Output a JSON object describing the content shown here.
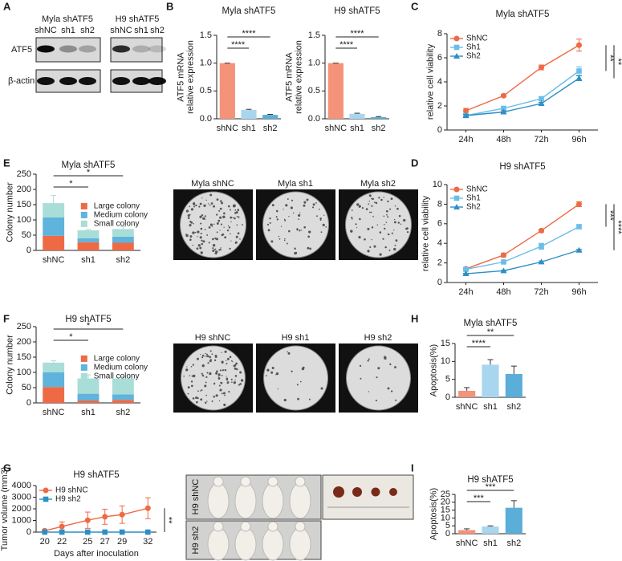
{
  "panel_labels": [
    "A",
    "B",
    "C",
    "D",
    "E",
    "F",
    "G",
    "H",
    "I"
  ],
  "blot": {
    "groups": [
      {
        "title": "Myla shATF5",
        "lanes": [
          "shNC",
          "sh1",
          "sh2"
        ]
      },
      {
        "title": "H9 shATF5",
        "lanes": [
          "shNC",
          "sh1",
          "sh2"
        ]
      }
    ],
    "rows": [
      "ATF5",
      "β-actin"
    ]
  },
  "images": {
    "plates": [
      [
        "Myla shNC",
        "Myla sh1",
        "Myla sh2"
      ],
      [
        "H9 shNC",
        "H9 sh1",
        "H9 sh2"
      ]
    ],
    "mice": [
      "H9 shNC",
      "H9 sh2"
    ]
  },
  "chart_data": [
    {
      "type": "bar",
      "title": "Myla shATF5",
      "y_label": [
        "ATF5 mRNA",
        "relative expression"
      ],
      "categories": [
        "shNC",
        "sh1",
        "sh2"
      ],
      "values": [
        1.0,
        0.16,
        0.07
      ],
      "errors": [
        0,
        0.01,
        0.01
      ],
      "colors": [
        "#f4937a",
        "#a9d6ef",
        "#5aaed8"
      ],
      "ylim": [
        0,
        1.5
      ],
      "yticks": [
        {
          "value": 0,
          "label": "0.0"
        },
        {
          "value": 0.5,
          "label": "0.5"
        },
        {
          "value": 1,
          "label": "1.0"
        },
        {
          "value": 1.5,
          "label": "1.5"
        }
      ],
      "significance": [
        "****",
        "****"
      ]
    },
    {
      "type": "bar",
      "title": "H9 shATF5",
      "y_label": [
        "ATF5 mRNA",
        "relative expression"
      ],
      "categories": [
        "shNC",
        "sh1",
        "sh2"
      ],
      "values": [
        1.0,
        0.09,
        0.03
      ],
      "errors": [
        0,
        0.01,
        0.01
      ],
      "colors": [
        "#f4937a",
        "#a9d6ef",
        "#5aaed8"
      ],
      "ylim": [
        0,
        1.5
      ],
      "yticks": [
        {
          "value": 0,
          "label": "0.0"
        },
        {
          "value": 0.5,
          "label": "0.5"
        },
        {
          "value": 1,
          "label": "1.0"
        },
        {
          "value": 1.5,
          "label": "1.5"
        }
      ],
      "significance": [
        "****",
        "****"
      ]
    },
    {
      "type": "line",
      "title": "Myla shATF5",
      "y_label": [
        "relative cell viability"
      ],
      "categories": [
        "24h",
        "48h",
        "72h",
        "96h"
      ],
      "series": [
        {
          "name": "ShNC",
          "color": "#ee6a45",
          "marker": "circle",
          "values": [
            1.6,
            2.85,
            5.2,
            7.05
          ],
          "errors": [
            0.2,
            0.1,
            0.2,
            0.5
          ]
        },
        {
          "name": "Sh1",
          "color": "#6bbde6",
          "marker": "square",
          "values": [
            1.2,
            1.8,
            2.6,
            4.9
          ],
          "errors": [
            0.1,
            0.15,
            0.15,
            0.35
          ]
        },
        {
          "name": "Sh2",
          "color": "#2e8fc4",
          "marker": "triangle",
          "values": [
            1.2,
            1.5,
            2.2,
            4.3
          ],
          "errors": [
            0.1,
            0.1,
            0.1,
            0.2
          ]
        }
      ],
      "ylim": [
        0,
        8
      ],
      "yticks": [
        0,
        2,
        4,
        6,
        8
      ],
      "legend": "upper left",
      "significance": [
        "**",
        "**"
      ]
    },
    {
      "type": "line",
      "title": "H9 shATF5",
      "y_label": [
        "relative cell viability"
      ],
      "categories": [
        "24h",
        "48h",
        "72h",
        "96h"
      ],
      "series": [
        {
          "name": "ShNC",
          "color": "#ee6a45",
          "marker": "circle",
          "values": [
            1.4,
            2.8,
            5.3,
            8.0
          ],
          "errors": [
            0.1,
            0.2,
            0.15,
            0.25
          ]
        },
        {
          "name": "Sh1",
          "color": "#6bbde6",
          "marker": "square",
          "values": [
            1.35,
            2.1,
            3.7,
            5.7
          ],
          "errors": [
            0.1,
            0.1,
            0.3,
            0.2
          ]
        },
        {
          "name": "Sh2",
          "color": "#2e8fc4",
          "marker": "triangle",
          "values": [
            0.9,
            1.2,
            2.1,
            3.3
          ],
          "errors": [
            0.05,
            0.05,
            0.1,
            0.1
          ]
        }
      ],
      "ylim": [
        0,
        10
      ],
      "yticks": [
        0,
        2,
        4,
        6,
        8,
        10
      ],
      "legend": "upper left",
      "significance": [
        "***",
        "****"
      ]
    },
    {
      "type": "stacked_bar",
      "title": "Myla shATF5",
      "y_label": [
        "Colony number"
      ],
      "categories": [
        "shNC",
        "sh1",
        "sh2"
      ],
      "series": [
        {
          "name": "Large colony",
          "color": "#ee6a45",
          "values": [
            48,
            27,
            25
          ],
          "errors": [
            20,
            5,
            8
          ]
        },
        {
          "name": "Medium colony",
          "color": "#5fb3dc",
          "values": [
            60,
            13,
            20
          ],
          "errors": [
            25,
            3,
            8
          ]
        },
        {
          "name": "Small colony",
          "color": "#a9ddd8",
          "values": [
            47,
            26,
            25
          ],
          "errors": [
            25,
            3,
            8
          ]
        }
      ],
      "ylim": [
        0,
        250
      ],
      "yticks": [
        0,
        50,
        100,
        150,
        200,
        250
      ],
      "legend": "center right",
      "significance": [
        "*",
        "*"
      ]
    },
    {
      "type": "stacked_bar",
      "title": "H9 shATF5",
      "y_label": [
        "Colony number"
      ],
      "categories": [
        "shNC",
        "sh1",
        "sh2"
      ],
      "series": [
        {
          "name": "Large colony",
          "color": "#ee6a45",
          "values": [
            52,
            8,
            10
          ],
          "errors": [
            10,
            4,
            5
          ]
        },
        {
          "name": "Medium colony",
          "color": "#5fb3dc",
          "values": [
            48,
            22,
            18
          ],
          "errors": [
            12,
            5,
            6
          ]
        },
        {
          "name": "Small colony",
          "color": "#a9ddd8",
          "values": [
            32,
            50,
            52
          ],
          "errors": [
            6,
            12,
            5
          ]
        }
      ],
      "ylim": [
        0,
        250
      ],
      "yticks": [
        0,
        50,
        100,
        150,
        200,
        250
      ],
      "legend": "center right",
      "significance": [
        "*",
        "*"
      ]
    },
    {
      "type": "line",
      "title": "H9 shATF5",
      "y_label": [
        "Tumor volume (mm3)"
      ],
      "x_label": "Days after inoculation",
      "x": [
        20,
        22,
        25,
        27,
        29,
        32
      ],
      "xlim": [
        19,
        33
      ],
      "xticks": [
        20,
        22,
        25,
        27,
        29,
        32
      ],
      "series": [
        {
          "name": "H9 shNC",
          "color": "#ee6a45",
          "marker": "circle",
          "values": [
            120,
            480,
            1020,
            1320,
            1500,
            2050
          ],
          "errors": [
            60,
            400,
            700,
            650,
            750,
            900
          ]
        },
        {
          "name": "H9 sh2",
          "color": "#2e8fc4",
          "marker": "square",
          "values": [
            0,
            0,
            0,
            0,
            0,
            0
          ],
          "errors": [
            0,
            0,
            0,
            0,
            0,
            0
          ]
        }
      ],
      "ylim": [
        0,
        4000
      ],
      "yticks": [
        0,
        1000,
        2000,
        3000,
        4000
      ],
      "legend": "upper left",
      "significance": [
        "**"
      ]
    },
    {
      "type": "bar",
      "title": "Myla shATF5",
      "y_label": [
        "Apoptosis(%)"
      ],
      "categories": [
        "shNC",
        "sh1",
        "sh2"
      ],
      "values": [
        1.8,
        9.1,
        6.5
      ],
      "errors": [
        0.9,
        1.4,
        2.2
      ],
      "colors": [
        "#f4937a",
        "#a9d6ef",
        "#5aaed8"
      ],
      "ylim": [
        0,
        15
      ],
      "yticks": [
        0,
        5,
        10,
        15
      ],
      "significance": [
        "****",
        "**"
      ]
    },
    {
      "type": "bar",
      "title": "H9 shATF5",
      "y_label": [
        "Apoptosis(%)"
      ],
      "categories": [
        "shNC",
        "sh1",
        "sh2"
      ],
      "values": [
        2.3,
        4.6,
        16.5
      ],
      "errors": [
        0.8,
        0.4,
        4.5
      ],
      "colors": [
        "#f4937a",
        "#a9d6ef",
        "#5aaed8"
      ],
      "ylim": [
        0,
        25
      ],
      "yticks": [
        0,
        5,
        10,
        15,
        20,
        25
      ],
      "significance": [
        "***",
        "***"
      ]
    }
  ]
}
